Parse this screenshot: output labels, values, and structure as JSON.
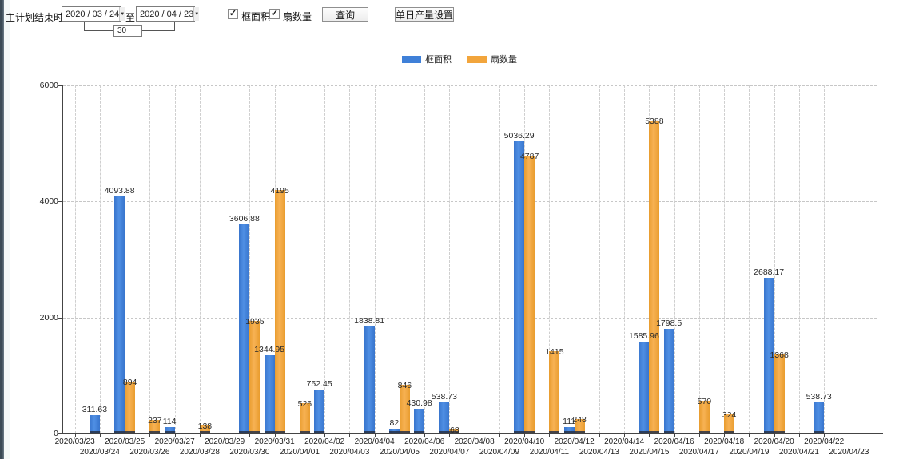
{
  "toolbar": {
    "label_main": "主计划结束时间:",
    "date_from": "2020 / 03 / 24",
    "label_to": "至:",
    "date_to": "2020 / 04 / 23",
    "days_value": "30",
    "checkbox_area": {
      "label": "框面积",
      "checked": true
    },
    "checkbox_fan": {
      "label": "扇数量",
      "checked": true
    },
    "query_button": "查询",
    "settings_button": "单日产量设置"
  },
  "legend": [
    {
      "label": "框面积",
      "color": "#3f80d8"
    },
    {
      "label": "扇数量",
      "color": "#f2a53c"
    }
  ],
  "chart_data": {
    "type": "bar",
    "title": "",
    "xlabel": "",
    "ylabel": "",
    "ylim": [
      0,
      6000
    ],
    "yticks": [
      0,
      2000,
      4000,
      6000
    ],
    "grid": true,
    "legend_position": "top",
    "categories": [
      "2020/03/23",
      "2020/03/24",
      "2020/03/25",
      "2020/03/26",
      "2020/03/27",
      "2020/03/28",
      "2020/03/29",
      "2020/03/30",
      "2020/03/31",
      "2020/04/01",
      "2020/04/02",
      "2020/04/03",
      "2020/04/04",
      "2020/04/05",
      "2020/04/06",
      "2020/04/07",
      "2020/04/08",
      "2020/04/09",
      "2020/04/10",
      "2020/04/11",
      "2020/04/12",
      "2020/04/13",
      "2020/04/14",
      "2020/04/15",
      "2020/04/16",
      "2020/04/17",
      "2020/04/18",
      "2020/04/19",
      "2020/04/20",
      "2020/04/21",
      "2020/04/22",
      "2020/04/23"
    ],
    "series": [
      {
        "name": "框面积",
        "color": "#3f80d8",
        "values": [
          null,
          311.63,
          4093.88,
          null,
          114,
          null,
          null,
          3606.88,
          1344.95,
          null,
          752.45,
          null,
          1838.81,
          82,
          430.98,
          538.73,
          null,
          null,
          5036.29,
          null,
          111,
          null,
          null,
          1585.96,
          1798.5,
          null,
          null,
          null,
          2688.17,
          null,
          538.73,
          null
        ]
      },
      {
        "name": "扇数量",
        "color": "#f2a53c",
        "values": [
          null,
          null,
          894,
          237,
          null,
          138,
          null,
          1935,
          4195,
          526,
          null,
          null,
          null,
          846,
          null,
          68,
          null,
          null,
          4787,
          1415,
          248,
          null,
          null,
          5388,
          null,
          570,
          324,
          null,
          1368,
          null,
          null,
          null
        ]
      }
    ]
  }
}
